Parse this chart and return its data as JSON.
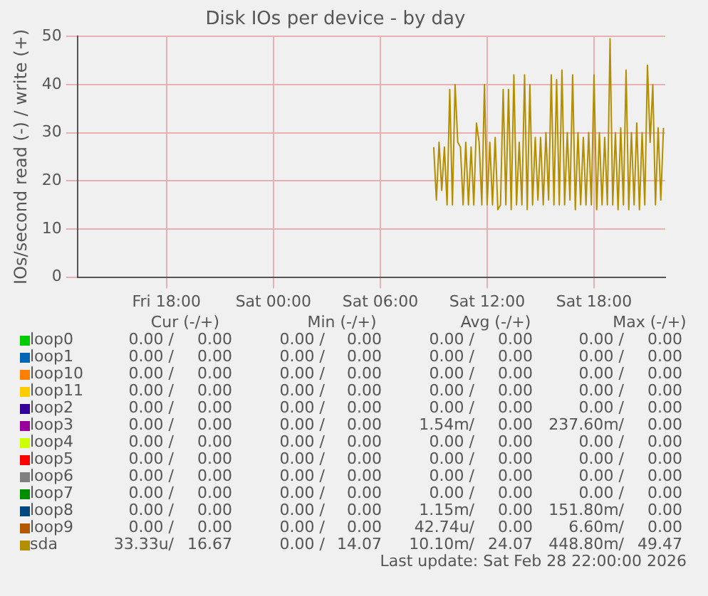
{
  "chart_data": {
    "type": "line",
    "title": "Disk IOs per device - by day",
    "ylabel": "IOs/second read (-) / write (+)",
    "xlim": [
      "2026-02-27T13:00",
      "2026-02-28T22:00"
    ],
    "xticks": [
      {
        "value": "2026-02-27T18:00",
        "label": "Fri 18:00"
      },
      {
        "value": "2026-02-28T00:00",
        "label": "Sat 00:00"
      },
      {
        "value": "2026-02-28T06:00",
        "label": "Sat 06:00"
      },
      {
        "value": "2026-02-28T12:00",
        "label": "Sat 12:00"
      },
      {
        "value": "2026-02-28T18:00",
        "label": "Sat 18:00"
      }
    ],
    "ylim": [
      0,
      50
    ],
    "yticks": [
      0,
      10,
      20,
      30,
      40,
      50
    ],
    "grid": true,
    "legend": "bottom",
    "marker": "none",
    "line_style": "solid",
    "series": [
      {
        "name": "loop0",
        "color": "#00cc00"
      },
      {
        "name": "loop1",
        "color": "#0066b3"
      },
      {
        "name": "loop10",
        "color": "#ff8000"
      },
      {
        "name": "loop11",
        "color": "#ffcc00"
      },
      {
        "name": "loop2",
        "color": "#330099"
      },
      {
        "name": "loop3",
        "color": "#990099"
      },
      {
        "name": "loop4",
        "color": "#ccff00"
      },
      {
        "name": "loop5",
        "color": "#ff0000"
      },
      {
        "name": "loop6",
        "color": "#808080"
      },
      {
        "name": "loop7",
        "color": "#008f00"
      },
      {
        "name": "loop8",
        "color": "#00487d"
      },
      {
        "name": "loop9",
        "color": "#b35a00"
      },
      {
        "name": "sda",
        "color": "#b38f00",
        "x": [
          "2026-02-28T09:00",
          "2026-02-28T09:09",
          "2026-02-28T09:18",
          "2026-02-28T09:27",
          "2026-02-28T09:36",
          "2026-02-28T09:45",
          "2026-02-28T09:54",
          "2026-02-28T10:03",
          "2026-02-28T10:12",
          "2026-02-28T10:21",
          "2026-02-28T10:30",
          "2026-02-28T10:39",
          "2026-02-28T10:48",
          "2026-02-28T10:57",
          "2026-02-28T11:06",
          "2026-02-28T11:15",
          "2026-02-28T11:24",
          "2026-02-28T11:33",
          "2026-02-28T11:42",
          "2026-02-28T11:51",
          "2026-02-28T12:00",
          "2026-02-28T12:09",
          "2026-02-28T12:18",
          "2026-02-28T12:27",
          "2026-02-28T12:36",
          "2026-02-28T12:45",
          "2026-02-28T12:54",
          "2026-02-28T13:03",
          "2026-02-28T13:12",
          "2026-02-28T13:21",
          "2026-02-28T13:30",
          "2026-02-28T13:39",
          "2026-02-28T13:48",
          "2026-02-28T13:57",
          "2026-02-28T14:06",
          "2026-02-28T14:15",
          "2026-02-28T14:24",
          "2026-02-28T14:33",
          "2026-02-28T14:42",
          "2026-02-28T14:51",
          "2026-02-28T15:00",
          "2026-02-28T15:09",
          "2026-02-28T15:18",
          "2026-02-28T15:27",
          "2026-02-28T15:36",
          "2026-02-28T15:45",
          "2026-02-28T15:54",
          "2026-02-28T16:03",
          "2026-02-28T16:12",
          "2026-02-28T16:21",
          "2026-02-28T16:30",
          "2026-02-28T16:39",
          "2026-02-28T16:48",
          "2026-02-28T16:57",
          "2026-02-28T17:06",
          "2026-02-28T17:15",
          "2026-02-28T17:24",
          "2026-02-28T17:33",
          "2026-02-28T17:42",
          "2026-02-28T17:51",
          "2026-02-28T18:00",
          "2026-02-28T18:09",
          "2026-02-28T18:18",
          "2026-02-28T18:27",
          "2026-02-28T18:36",
          "2026-02-28T18:45",
          "2026-02-28T18:54",
          "2026-02-28T19:03",
          "2026-02-28T19:12",
          "2026-02-28T19:21",
          "2026-02-28T19:30",
          "2026-02-28T19:39",
          "2026-02-28T19:48",
          "2026-02-28T19:57",
          "2026-02-28T20:06",
          "2026-02-28T20:15",
          "2026-02-28T20:24",
          "2026-02-28T20:33",
          "2026-02-28T20:42",
          "2026-02-28T20:51",
          "2026-02-28T21:00",
          "2026-02-28T21:09",
          "2026-02-28T21:18",
          "2026-02-28T21:27",
          "2026-02-28T21:36",
          "2026-02-28T21:45",
          "2026-02-28T21:54"
        ],
        "values": [
          27,
          16,
          28,
          18,
          27,
          15,
          39,
          15,
          40,
          28,
          27,
          15,
          28,
          15,
          27,
          15,
          32,
          28,
          15,
          40,
          15,
          28,
          15,
          29,
          14,
          15,
          39,
          15,
          39,
          14,
          42,
          15,
          28,
          15,
          42,
          14,
          40,
          15,
          29,
          16,
          29,
          15,
          30,
          16,
          42,
          15,
          41,
          15,
          43,
          15,
          30,
          16,
          42,
          14,
          30,
          15,
          29,
          15,
          30,
          15,
          42,
          14,
          30,
          15,
          29,
          15,
          49.5,
          15,
          30,
          14,
          31,
          15,
          43,
          14,
          30,
          15,
          32,
          14,
          30,
          15,
          44,
          28,
          40,
          15,
          31,
          16,
          31
        ]
      }
    ],
    "annotations": [
      "Cur (-/+)",
      "Min (-/+)",
      "Avg (-/+)",
      "Max (-/+)",
      "0.00 /",
      "0.00",
      "0.00 /",
      "0.00",
      "0.00 /",
      "0.00",
      "0.00 /",
      "0.00",
      "0.00 /",
      "0.00",
      "0.00 /",
      "0.00",
      "0.00 /",
      "0.00",
      "0.00 /",
      "0.00",
      "0.00 /",
      "0.00",
      "0.00 /",
      "0.00",
      "0.00 /",
      "0.00",
      "0.00 /",
      "0.00",
      "0.00 /",
      "0.00",
      "0.00 /",
      "0.00",
      "0.00 /",
      "0.00",
      "0.00 /",
      "0.00",
      "0.00 /",
      "0.00",
      "0.00 /",
      "0.00",
      "0.00 /",
      "0.00",
      "0.00 /",
      "0.00",
      "0.00 /",
      "0.00",
      "0.00 /",
      "0.00",
      "1.54m/",
      "0.00",
      "237.60m/",
      "0.00",
      "0.00 /",
      "0.00",
      "0.00 /",
      "0.00",
      "0.00 /",
      "0.00",
      "0.00 /",
      "0.00",
      "0.00 /",
      "0.00",
      "0.00 /",
      "0.00",
      "0.00 /",
      "0.00",
      "0.00 /",
      "0.00",
      "0.00 /",
      "0.00",
      "0.00 /",
      "0.00",
      "0.00 /",
      "0.00",
      "0.00 /",
      "0.00",
      "0.00 /",
      "0.00",
      "0.00 /",
      "0.00",
      "0.00 /",
      "0.00",
      "0.00 /",
      "0.00",
      "0.00 /",
      "0.00",
      "0.00 /",
      "0.00",
      "1.15m/",
      "0.00",
      "151.80m/",
      "0.00",
      "0.00 /",
      "0.00",
      "0.00 /",
      "0.00",
      "42.74u/",
      "0.00",
      "6.60m/",
      "0.00",
      "33.33u/",
      "16.67",
      "0.00 /",
      "14.07",
      "10.10m/",
      "24.07",
      "448.80m/",
      "49.47",
      "Last update: Sat Feb 28 22:00:00 2026"
    ]
  }
}
